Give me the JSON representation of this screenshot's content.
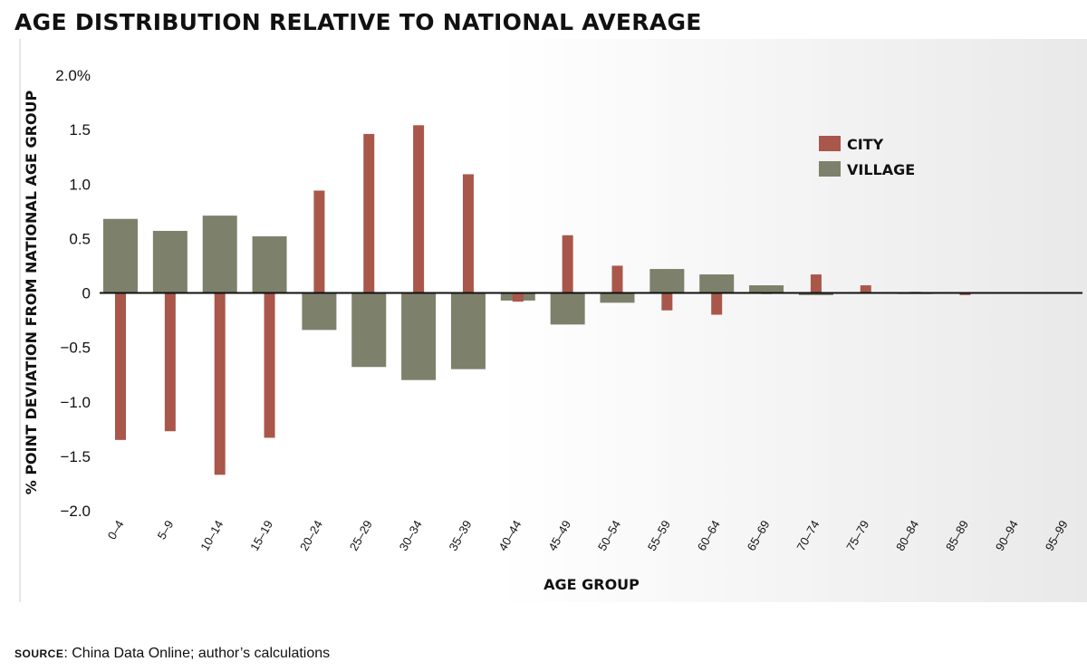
{
  "title": "AGE DISTRIBUTION RELATIVE TO NATIONAL AVERAGE",
  "source": {
    "label": "SOURCE",
    "text": ": China Data Online; author’s calculations"
  },
  "colors": {
    "city": "#a9574a",
    "village": "#7d816b",
    "background_start": "#ffffff",
    "background_end": "#e9e9e9",
    "axis": "#111111"
  },
  "chart_data": {
    "type": "bar",
    "title": "AGE DISTRIBUTION RELATIVE TO NATIONAL AVERAGE",
    "xlabel": "AGE GROUP",
    "ylabel": "% POINT DEVIATION FROM NATIONAL AGE GROUP",
    "ylim": [
      -2.0,
      2.0
    ],
    "yticks": [
      {
        "value": 2.0,
        "label": "2.0%"
      },
      {
        "value": 1.5,
        "label": "1.5"
      },
      {
        "value": 1.0,
        "label": "1.0"
      },
      {
        "value": 0.5,
        "label": "0.5"
      },
      {
        "value": 0,
        "label": "0"
      },
      {
        "value": -0.5,
        "label": "−0.5"
      },
      {
        "value": -1.0,
        "label": "−1.0"
      },
      {
        "value": -1.5,
        "label": "−1.5"
      },
      {
        "value": -2.0,
        "label": "−2.0"
      }
    ],
    "categories": [
      "0–4",
      "5–9",
      "10–14",
      "15–19",
      "20–24",
      "25–29",
      "30–34",
      "35–39",
      "40–44",
      "45–49",
      "50–54",
      "55–59",
      "60–64",
      "65–69",
      "70–74",
      "75–79",
      "80–84",
      "85–89",
      "90–94",
      "95–99"
    ],
    "series": [
      {
        "name": "CITY",
        "values": [
          -1.35,
          -1.27,
          -1.67,
          -1.33,
          0.94,
          1.46,
          1.54,
          1.09,
          -0.08,
          0.53,
          0.25,
          -0.16,
          -0.2,
          -0.01,
          0.17,
          0.07,
          0.01,
          -0.02,
          0.0,
          0.0
        ]
      },
      {
        "name": "VILLAGE",
        "values": [
          0.68,
          0.57,
          0.71,
          0.52,
          -0.34,
          -0.68,
          -0.8,
          -0.7,
          -0.07,
          -0.29,
          -0.09,
          0.22,
          0.17,
          0.07,
          -0.02,
          0.0,
          -0.01,
          0.0,
          0.0,
          0.0
        ]
      }
    ],
    "legend": {
      "position": "top-right",
      "entries": [
        "CITY",
        "VILLAGE"
      ]
    },
    "grid": false
  }
}
